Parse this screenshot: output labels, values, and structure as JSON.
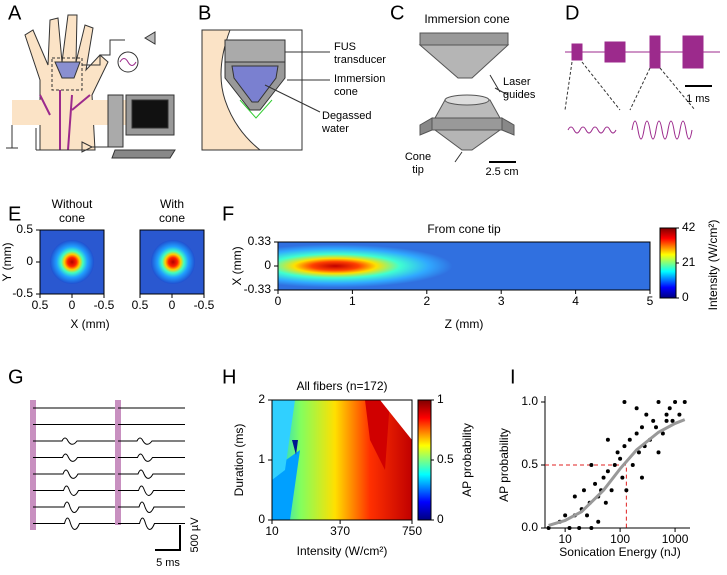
{
  "panels": {
    "A": {
      "label": "A"
    },
    "B": {
      "label": "B",
      "fus_transducer": [
        "FUS",
        "transducer"
      ],
      "immersion_cone": [
        "Immersion",
        "cone"
      ],
      "degassed_water": [
        "Degassed",
        "water"
      ]
    },
    "C": {
      "label": "C",
      "title": "Immersion cone",
      "laser_guides": [
        "Laser",
        "guides"
      ],
      "cone_tip": [
        "Cone",
        "tip"
      ],
      "scale_bar": "2.5 cm"
    },
    "D": {
      "label": "D",
      "scale_bar": "1 ms"
    },
    "G": {
      "label": "G",
      "scale_y": "500 µV",
      "scale_x": "5 ms"
    }
  },
  "chart_data": [
    {
      "type": "heatmap",
      "panel": "E",
      "titles": [
        [
          "Without",
          "cone"
        ],
        [
          "With",
          "cone"
        ]
      ],
      "ylabel": "Y (mm)",
      "xlabel": "X (mm)",
      "xlim": [
        0.5,
        -0.5
      ],
      "xticks": [
        0.5,
        0,
        -0.5
      ],
      "ylim": [
        -0.5,
        0.5
      ],
      "yticks": [
        0.5,
        0,
        -0.5
      ]
    },
    {
      "type": "heatmap",
      "panel": "F",
      "title": "From cone tip",
      "ylabel": "X (mm)",
      "xlabel": "Z (mm)",
      "xlim": [
        0,
        5
      ],
      "xticks": [
        0,
        1,
        2,
        3,
        4,
        5
      ],
      "ylim": [
        -0.33,
        0.33
      ],
      "yticks": [
        0.33,
        0,
        -0.33
      ],
      "colorbar": {
        "label": "Intensity (W/cm²)",
        "lim": [
          0,
          42
        ],
        "ticks": [
          0,
          21,
          42
        ]
      }
    },
    {
      "type": "heatmap",
      "panel": "H",
      "title": "All fibers (n=172)",
      "ylabel": "Duration (ms)",
      "xlabel": "Intensity (W/cm²)",
      "xlim": [
        10,
        750
      ],
      "xticks": [
        10,
        370,
        750
      ],
      "ylim": [
        0,
        2
      ],
      "yticks": [
        0,
        1,
        2
      ],
      "colorbar": {
        "label": "AP probability",
        "lim": [
          0,
          1
        ],
        "ticks": [
          0,
          0.5,
          1
        ]
      }
    },
    {
      "type": "scatter",
      "panel": "I",
      "ylabel": "AP probability",
      "xlabel": "Sonication Energy (nJ)",
      "xscale": "log",
      "xlim": [
        4.3,
        1870
      ],
      "xticks": [
        10,
        100,
        1000
      ],
      "ylim": [
        0,
        1
      ],
      "yticks": [
        {
          "value": 0,
          "label": "0.0"
        },
        {
          "value": 0.5,
          "label": "0.5"
        },
        {
          "value": 1,
          "label": "1.0"
        }
      ],
      "color": "#000000",
      "fit_color": "#999999",
      "threshold_color": "#e02020",
      "points": {
        "x": [
          5,
          8,
          10,
          12,
          15,
          18,
          20,
          22,
          25,
          28,
          30,
          35,
          40,
          45,
          50,
          55,
          60,
          70,
          80,
          90,
          100,
          110,
          120,
          130,
          150,
          170,
          200,
          220,
          250,
          280,
          300,
          350,
          400,
          450,
          500,
          600,
          700,
          800,
          900,
          1000,
          1200,
          1500,
          15,
          30,
          60,
          120,
          250,
          500,
          40,
          200,
          700
        ],
        "y": [
          0,
          0.05,
          0.1,
          0,
          0.25,
          0,
          0.15,
          0.3,
          0.1,
          0.2,
          0,
          0.35,
          0.25,
          0.3,
          0.4,
          0.2,
          0.45,
          0.3,
          0.5,
          0.6,
          0.55,
          0.4,
          0.65,
          0.3,
          0.7,
          0.5,
          0.75,
          0.6,
          0.8,
          0.65,
          0.9,
          0.7,
          0.85,
          0.8,
          1,
          0.75,
          0.9,
          0.95,
          0.85,
          1,
          0.9,
          1,
          0.1,
          0.5,
          0.7,
          1,
          0.4,
          0.6,
          0.05,
          0.95,
          0.85
        ]
      },
      "fit": {
        "x": [
          5,
          10,
          20,
          50,
          100,
          200,
          500,
          1000,
          1500
        ],
        "y": [
          0.02,
          0.06,
          0.13,
          0.3,
          0.47,
          0.62,
          0.76,
          0.83,
          0.86
        ]
      },
      "threshold": {
        "x": 130,
        "y": 0.5
      }
    }
  ]
}
